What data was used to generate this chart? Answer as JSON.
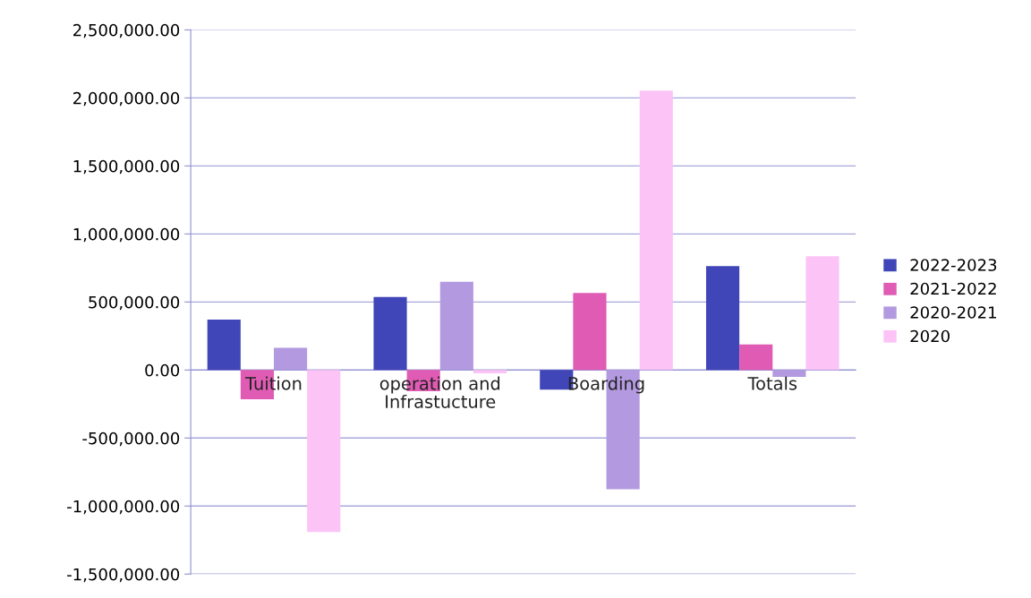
{
  "chart_data": {
    "type": "bar",
    "categories": [
      "Tuition",
      "operation and\nInfrastucture",
      "Boarding",
      "Totals"
    ],
    "series": [
      {
        "name": "2022-2023",
        "color": "#4046b8",
        "values": [
          370000,
          537000,
          -145000,
          764000
        ]
      },
      {
        "name": "2021-2022",
        "color": "#e05cb4",
        "values": [
          -215000,
          -156000,
          566000,
          188000
        ]
      },
      {
        "name": "2020-2021",
        "color": "#b39ae0",
        "values": [
          163000,
          648000,
          -877000,
          -50000
        ]
      },
      {
        "name": "2020",
        "color": "#fcc4f6",
        "values": [
          -1190000,
          -25000,
          2053000,
          837000
        ]
      }
    ],
    "ylim": [
      -1500000,
      2500000
    ],
    "yticks": [
      {
        "value": -1500000,
        "label": "-1,500,000.00"
      },
      {
        "value": -1000000,
        "label": "-1,000,000.00"
      },
      {
        "value": -500000,
        "label": "-500,000.00"
      },
      {
        "value": 0,
        "label": "0.00"
      },
      {
        "value": 500000,
        "label": "500,000.00"
      },
      {
        "value": 1000000,
        "label": "1,000,000.00"
      },
      {
        "value": 1500000,
        "label": "1,500,000.00"
      },
      {
        "value": 2000000,
        "label": "2,000,000.00"
      },
      {
        "value": 2500000,
        "label": "2,500,000.00"
      }
    ],
    "grid": "y",
    "legend": "right"
  }
}
